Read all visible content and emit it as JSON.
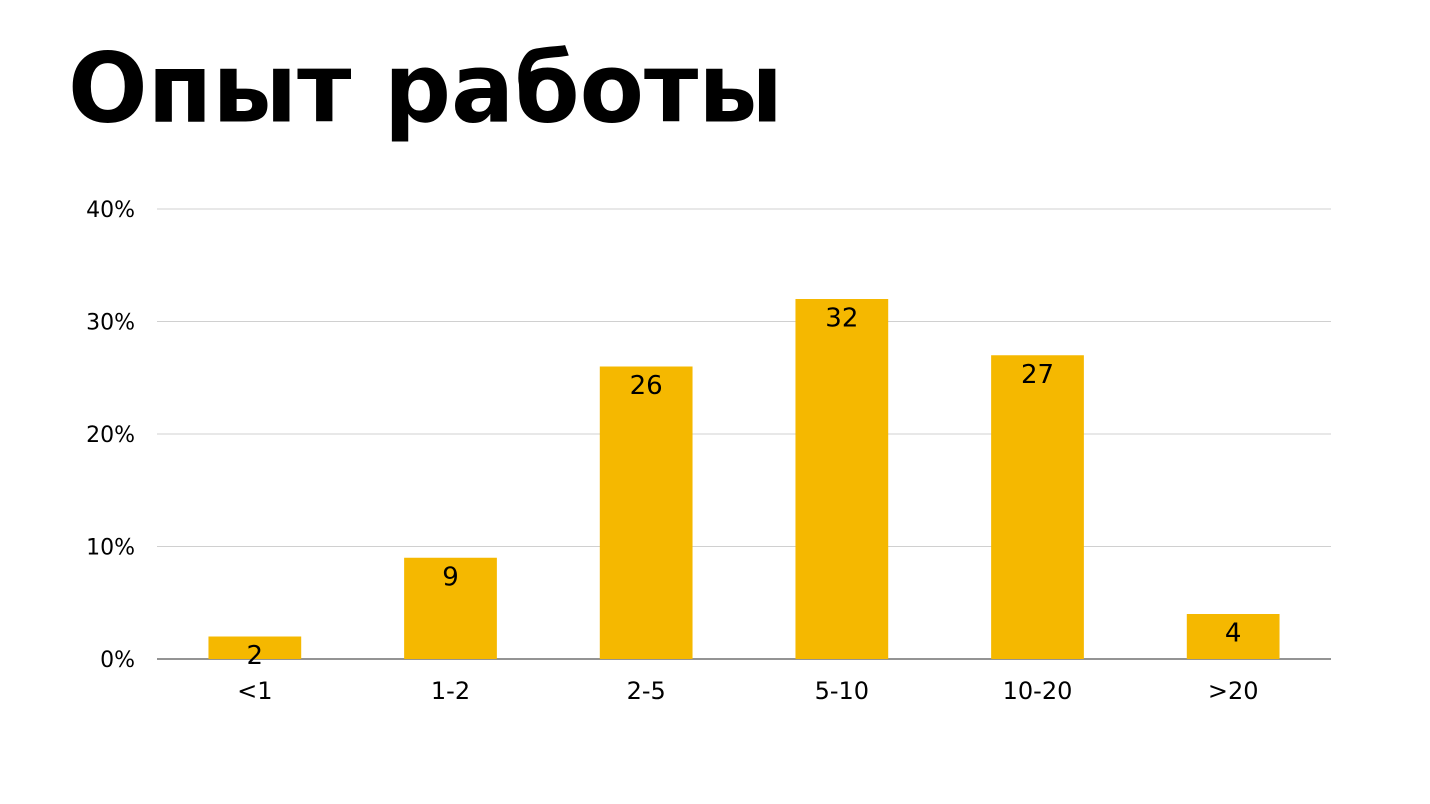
{
  "chart_data": {
    "type": "bar",
    "title": "Опыт работы",
    "categories": [
      "<1",
      "1-2",
      "2-5",
      "5-10",
      "10-20",
      ">20"
    ],
    "values": [
      2,
      9,
      26,
      32,
      27,
      4
    ],
    "color": "#f5b800",
    "ylim": [
      0,
      40
    ],
    "yticks": [
      {
        "value": 0,
        "label": "0%"
      },
      {
        "value": 10,
        "label": "10%"
      },
      {
        "value": 20,
        "label": "20%"
      },
      {
        "value": 30,
        "label": "30%"
      },
      {
        "value": 40,
        "label": "40%"
      }
    ],
    "grid": true
  }
}
